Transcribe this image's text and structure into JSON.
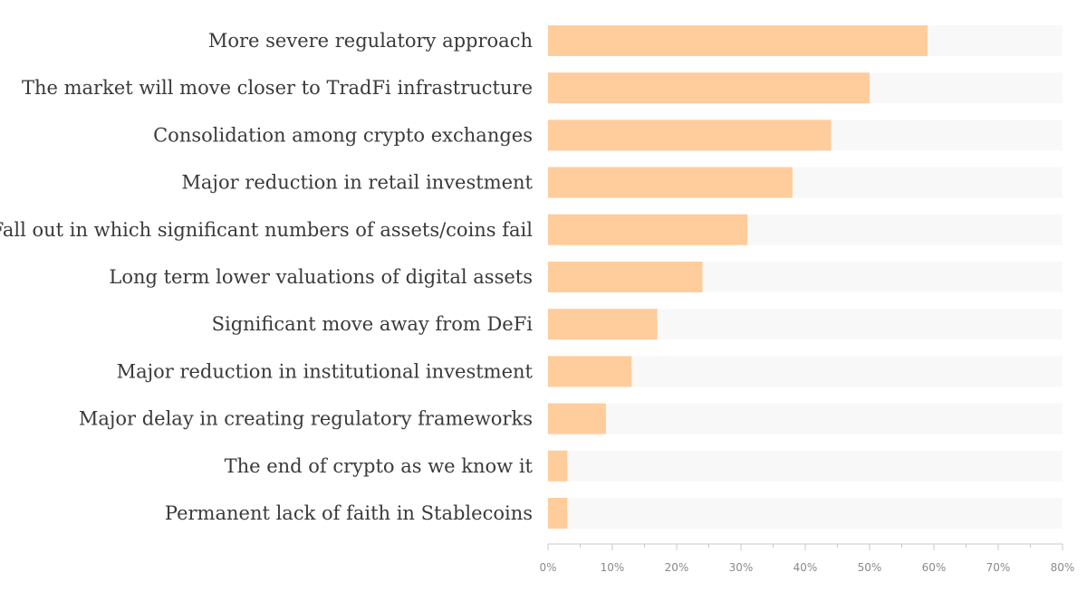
{
  "chart_data": {
    "type": "bar",
    "orientation": "horizontal",
    "categories": [
      "More severe regulatory approach",
      "The market will move closer to TradFi infrastructure",
      "Consolidation among crypto exchanges",
      "Major reduction in retail investment",
      "Fall out in which significant numbers of assets/coins fail",
      "Long term lower valuations of digital assets",
      "Significant move away from DeFi",
      "Major reduction in institutional investment",
      "Major delay in creating regulatory frameworks",
      "The end of crypto as we know it",
      "Permanent lack of faith in Stablecoins"
    ],
    "values": [
      59,
      50,
      44,
      38,
      31,
      24,
      17,
      13,
      9,
      3,
      3
    ],
    "value_unit": "%",
    "xlim": [
      0,
      80
    ],
    "ticks": [
      "0%",
      "10%",
      "20%",
      "30%",
      "40%",
      "50%",
      "60%",
      "70%",
      "80%"
    ],
    "grid": false,
    "legend": "none",
    "colors": {
      "bar": "#ffcc9c",
      "track": "#f8f8f8",
      "axis": "#c8c8c8"
    }
  }
}
